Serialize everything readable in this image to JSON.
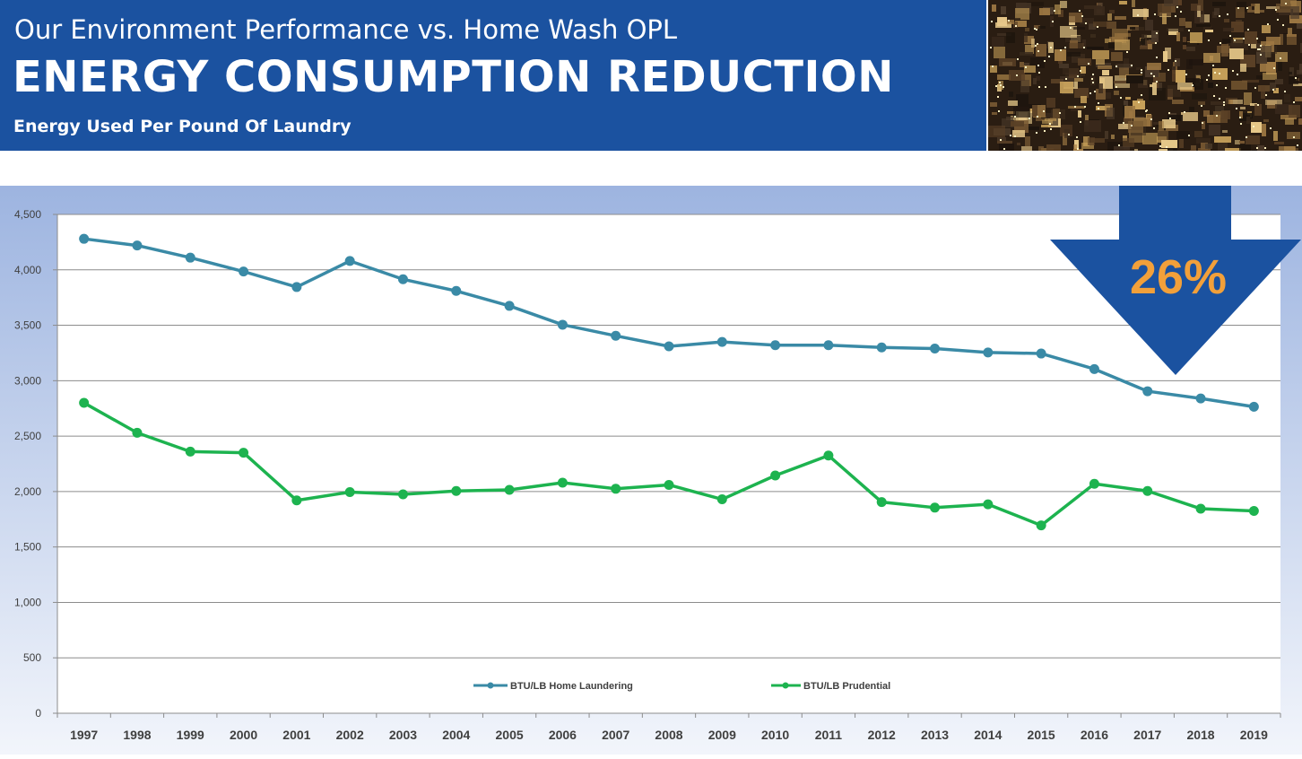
{
  "header": {
    "subtitle_top": "Our Environment Performance vs. Home Wash OPL",
    "title": "ENERGY CONSUMPTION REDUCTION",
    "subtitle_bottom": "Energy Used Per Pound Of Laundry"
  },
  "callout": {
    "label": "26%"
  },
  "colors": {
    "header_bg": "#1b52a0",
    "home_line": "#3a8aa6",
    "prudential_line": "#1db34f",
    "arrow": "#1b52a0",
    "callout_text": "#f2a03a"
  },
  "chart_data": {
    "type": "line",
    "title": "Energy Used Per Pound Of Laundry",
    "categories": [
      "1997",
      "1998",
      "1999",
      "2000",
      "2001",
      "2002",
      "2003",
      "2004",
      "2005",
      "2006",
      "2007",
      "2008",
      "2009",
      "2010",
      "2011",
      "2012",
      "2013",
      "2014",
      "2015",
      "2016",
      "2017",
      "2018",
      "2019"
    ],
    "ylim": [
      0,
      4500
    ],
    "yticks": [
      0,
      500,
      1000,
      1500,
      2000,
      2500,
      3000,
      3500,
      4000,
      4500
    ],
    "ytick_labels": [
      "0",
      "500",
      "1,000",
      "1,500",
      "2,000",
      "2,500",
      "3,000",
      "3,500",
      "4,000",
      "4,500"
    ],
    "grid": true,
    "legend_position": "bottom-center",
    "series": [
      {
        "name": "BTU/LB Home Laundering",
        "values": [
          4280,
          4220,
          4110,
          3985,
          3845,
          4080,
          3915,
          3810,
          3675,
          3505,
          3405,
          3310,
          3350,
          3320,
          3320,
          3300,
          3290,
          3255,
          3245,
          3105,
          2905,
          2840,
          2765
        ]
      },
      {
        "name": "BTU/LB Prudential",
        "values": [
          2800,
          2530,
          2360,
          2350,
          1920,
          1995,
          1975,
          2005,
          2015,
          2080,
          2025,
          2060,
          1930,
          2145,
          2325,
          1905,
          1855,
          1885,
          1695,
          2070,
          2005,
          1845,
          1825
        ]
      }
    ]
  }
}
